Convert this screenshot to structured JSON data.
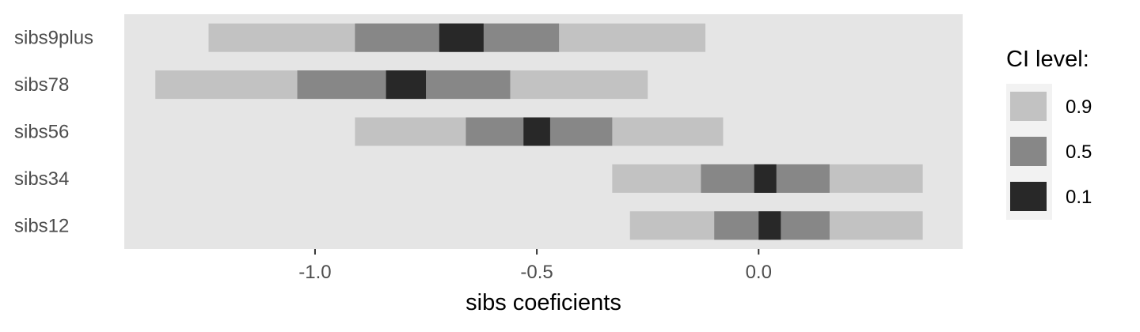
{
  "chart_data": {
    "type": "bar",
    "subtype": "confidence-interval-strips",
    "xlabel": "sibs coeficients",
    "xlim": [
      -1.43,
      0.46
    ],
    "xticks": [
      -1.0,
      -0.5,
      0.0
    ],
    "xtick_labels": [
      "-1.0",
      "-0.5",
      "0.0"
    ],
    "grid": false,
    "panel_background": "#e5e5e5",
    "legend": {
      "title": "CI level:",
      "position": "right",
      "entries": [
        {
          "label": "0.9",
          "color": "#c2c2c2"
        },
        {
          "label": "0.5",
          "color": "#878787"
        },
        {
          "label": "0.1",
          "color": "#282828"
        }
      ]
    },
    "categories": [
      "sibs9plus",
      "sibs78",
      "sibs56",
      "sibs34",
      "sibs12"
    ],
    "intervals": [
      {
        "category": "sibs9plus",
        "ci90": [
          -1.24,
          -0.12
        ],
        "ci50": [
          -0.91,
          -0.45
        ],
        "ci10": [
          -0.72,
          -0.62
        ]
      },
      {
        "category": "sibs78",
        "ci90": [
          -1.36,
          -0.25
        ],
        "ci50": [
          -1.04,
          -0.56
        ],
        "ci10": [
          -0.84,
          -0.75
        ]
      },
      {
        "category": "sibs56",
        "ci90": [
          -0.91,
          -0.08
        ],
        "ci50": [
          -0.66,
          -0.33
        ],
        "ci10": [
          -0.53,
          -0.47
        ]
      },
      {
        "category": "sibs34",
        "ci90": [
          -0.33,
          0.37
        ],
        "ci50": [
          -0.13,
          0.16
        ],
        "ci10": [
          -0.01,
          0.04
        ]
      },
      {
        "category": "sibs12",
        "ci90": [
          -0.29,
          0.37
        ],
        "ci50": [
          -0.1,
          0.16
        ],
        "ci10": [
          0.0,
          0.05
        ]
      }
    ]
  }
}
